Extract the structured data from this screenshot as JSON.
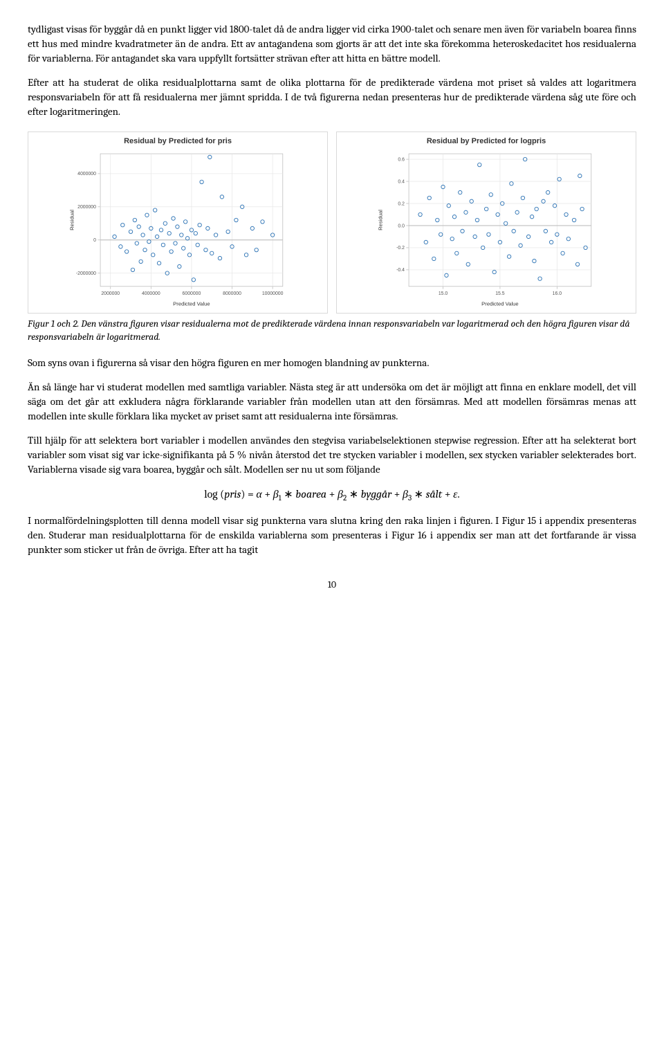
{
  "paragraphs": {
    "p1": "tydligast visas för byggår då en punkt ligger vid 1800-talet då de andra ligger vid cirka 1900-talet och senare men även för variabeln boarea finns ett hus med mindre kvadratmeter än de andra. Ett av antagandena som gjorts är att det inte ska förekomma heteroskedacitet hos residualerna för variablerna. För antagandet ska vara uppfyllt fortsätter strävan efter att hitta en bättre modell.",
    "p2": "Efter att ha studerat de olika residualplottarna samt de olika plottarna för de predikterade värdena mot priset så valdes att logaritmera responsvariabeln för att få residualerna mer jämnt spridda. I de två figurerna nedan presenteras hur de predikterade värdena såg ute före och efter logaritmeringen.",
    "p3": "Som syns ovan i figurerna så visar den högra figuren en mer homogen blandning av punkterna.",
    "p4": "Än så länge har vi studerat modellen med samtliga variabler. Nästa steg är att undersöka om det är möjligt att finna en enklare modell, det vill säga om det går att exkludera några förklarande variabler från modellen utan att den försämras. Med att modellen försämras menas att modellen inte skulle förklara lika mycket av priset samt att residualerna inte försämras.",
    "p5": "Till hjälp för att selektera bort variabler i modellen användes den stegvisa variabelselektionen stepwise regression. Efter att ha selekterat bort variabler som visat sig var icke-signifikanta på 5 % nivån återstod det tre stycken variabler i modellen, sex stycken variabler selekterades bort. Variablerna visade sig vara boarea, byggår och sålt. Modellen ser nu ut som följande",
    "p6": "I normalfördelningsplotten till denna modell visar sig punkterna vara slutna kring den raka linjen i figuren. I Figur 15 i appendix presenteras den. Studerar man residualplottarna för de enskilda variablerna som presenteras i Figur 16 i appendix ser man att det fortfarande är vissa punkter som sticker ut från de övriga. Efter att ha tagit"
  },
  "caption": "Figur 1 och 2. Den vänstra figuren visar residualerna mot de predikterade värdena innan responsvariabeln var logaritmerad och den högra figuren visar då responsvariabeln är logaritmerad.",
  "page_number": "10",
  "equation": {
    "eq_part1": "log (",
    "eq_pris": "pris",
    "eq_part2": ") = ",
    "eq_alpha": "α",
    "eq_plus": " + ",
    "eq_beta": "β",
    "eq_sub1": "1",
    "eq_ast": " ∗ ",
    "eq_boarea": "boarea",
    "eq_sub2": "2",
    "eq_byggar": "byggår",
    "eq_sub3": "3",
    "eq_salt": "sålt",
    "eq_eps": "ε",
    "eq_dot": "."
  },
  "chart_left": {
    "type": "scatter",
    "title": "Residual by Predicted for pris",
    "xlabel": "Predicted Value",
    "ylabel": "Residual",
    "xlim": [
      1500000,
      10500000
    ],
    "ylim": [
      -2800000,
      5200000
    ],
    "xticks": [
      2000000,
      4000000,
      6000000,
      8000000,
      10000000
    ],
    "yticks": [
      -2000000,
      0,
      2000000,
      4000000
    ],
    "xtick_labels": [
      "2000000",
      "4000000",
      "6000000",
      "8000000",
      "10000000"
    ],
    "ytick_labels": [
      "-2000000",
      "0",
      "2000000",
      "4000000"
    ],
    "marker_color": "#5b9bd5",
    "marker_stroke": "#2e74b5",
    "marker_radius": 3.5,
    "grid_color": "#e8e8e8",
    "axis_color": "#bdbdbd",
    "tick_font_size": 9,
    "label_font_size": 10,
    "title_font_size": 11,
    "refline_y": 0,
    "refline_color": "#bfbfbf",
    "points": [
      [
        2200000,
        200000
      ],
      [
        2500000,
        -400000
      ],
      [
        2600000,
        900000
      ],
      [
        2800000,
        -700000
      ],
      [
        3000000,
        500000
      ],
      [
        3100000,
        -1800000
      ],
      [
        3200000,
        1200000
      ],
      [
        3300000,
        -200000
      ],
      [
        3400000,
        800000
      ],
      [
        3500000,
        -1300000
      ],
      [
        3600000,
        300000
      ],
      [
        3700000,
        -600000
      ],
      [
        3800000,
        1500000
      ],
      [
        3900000,
        -100000
      ],
      [
        4000000,
        700000
      ],
      [
        4100000,
        -900000
      ],
      [
        4200000,
        1800000
      ],
      [
        4300000,
        200000
      ],
      [
        4400000,
        -1400000
      ],
      [
        4500000,
        600000
      ],
      [
        4600000,
        -300000
      ],
      [
        4700000,
        1000000
      ],
      [
        4800000,
        -2000000
      ],
      [
        4900000,
        400000
      ],
      [
        5000000,
        -700000
      ],
      [
        5100000,
        1300000
      ],
      [
        5200000,
        -200000
      ],
      [
        5300000,
        800000
      ],
      [
        5400000,
        -1600000
      ],
      [
        5500000,
        300000
      ],
      [
        5600000,
        -500000
      ],
      [
        5700000,
        1100000
      ],
      [
        5800000,
        100000
      ],
      [
        5900000,
        -900000
      ],
      [
        6000000,
        600000
      ],
      [
        6100000,
        -2400000
      ],
      [
        6200000,
        400000
      ],
      [
        6300000,
        -300000
      ],
      [
        6400000,
        900000
      ],
      [
        6500000,
        3500000
      ],
      [
        6700000,
        -600000
      ],
      [
        6800000,
        700000
      ],
      [
        6900000,
        5000000
      ],
      [
        7000000,
        -800000
      ],
      [
        7200000,
        300000
      ],
      [
        7400000,
        -1100000
      ],
      [
        7500000,
        2600000
      ],
      [
        7800000,
        500000
      ],
      [
        8000000,
        -400000
      ],
      [
        8200000,
        1200000
      ],
      [
        8500000,
        2000000
      ],
      [
        8700000,
        -900000
      ],
      [
        9000000,
        700000
      ],
      [
        9200000,
        -600000
      ],
      [
        9500000,
        1100000
      ],
      [
        10000000,
        300000
      ]
    ]
  },
  "chart_right": {
    "type": "scatter",
    "title": "Residual by Predicted for logpris",
    "xlabel": "Predicted Value",
    "ylabel": "Residual",
    "xlim": [
      14.7,
      16.3
    ],
    "ylim": [
      -0.55,
      0.65
    ],
    "xticks": [
      15.0,
      15.5,
      16.0
    ],
    "yticks": [
      -0.4,
      -0.2,
      0.0,
      0.2,
      0.4,
      0.6
    ],
    "xtick_labels": [
      "15.0",
      "15.5",
      "16.0"
    ],
    "ytick_labels": [
      "-0.4",
      "-0.2",
      "0.0",
      "0.2",
      "0.4",
      "0.6"
    ],
    "marker_color": "#5b9bd5",
    "marker_stroke": "#2e74b5",
    "marker_radius": 3.5,
    "grid_color": "#e8e8e8",
    "axis_color": "#bdbdbd",
    "tick_font_size": 9,
    "label_font_size": 10,
    "title_font_size": 11,
    "refline_y": 0,
    "refline_color": "#bfbfbf",
    "points": [
      [
        14.8,
        0.1
      ],
      [
        14.85,
        -0.15
      ],
      [
        14.88,
        0.25
      ],
      [
        14.92,
        -0.3
      ],
      [
        14.95,
        0.05
      ],
      [
        14.98,
        -0.08
      ],
      [
        15.0,
        0.35
      ],
      [
        15.03,
        -0.45
      ],
      [
        15.05,
        0.18
      ],
      [
        15.08,
        -0.12
      ],
      [
        15.1,
        0.08
      ],
      [
        15.12,
        -0.25
      ],
      [
        15.15,
        0.3
      ],
      [
        15.17,
        -0.05
      ],
      [
        15.2,
        0.12
      ],
      [
        15.22,
        -0.35
      ],
      [
        15.25,
        0.22
      ],
      [
        15.28,
        -0.1
      ],
      [
        15.3,
        0.05
      ],
      [
        15.32,
        0.55
      ],
      [
        15.35,
        -0.2
      ],
      [
        15.38,
        0.15
      ],
      [
        15.4,
        -0.08
      ],
      [
        15.42,
        0.28
      ],
      [
        15.45,
        -0.42
      ],
      [
        15.48,
        0.1
      ],
      [
        15.5,
        -0.15
      ],
      [
        15.52,
        0.2
      ],
      [
        15.55,
        0.02
      ],
      [
        15.58,
        -0.28
      ],
      [
        15.6,
        0.38
      ],
      [
        15.62,
        -0.05
      ],
      [
        15.65,
        0.12
      ],
      [
        15.68,
        -0.18
      ],
      [
        15.7,
        0.25
      ],
      [
        15.72,
        0.6
      ],
      [
        15.75,
        -0.1
      ],
      [
        15.78,
        0.08
      ],
      [
        15.8,
        -0.32
      ],
      [
        15.82,
        0.15
      ],
      [
        15.85,
        -0.48
      ],
      [
        15.88,
        0.22
      ],
      [
        15.9,
        -0.05
      ],
      [
        15.92,
        0.3
      ],
      [
        15.95,
        -0.15
      ],
      [
        15.98,
        0.18
      ],
      [
        16.0,
        -0.08
      ],
      [
        16.02,
        0.42
      ],
      [
        16.05,
        -0.25
      ],
      [
        16.08,
        0.1
      ],
      [
        16.1,
        -0.12
      ],
      [
        16.15,
        0.05
      ],
      [
        16.18,
        -0.35
      ],
      [
        16.2,
        0.45
      ],
      [
        16.22,
        0.15
      ],
      [
        16.25,
        -0.2
      ]
    ]
  }
}
